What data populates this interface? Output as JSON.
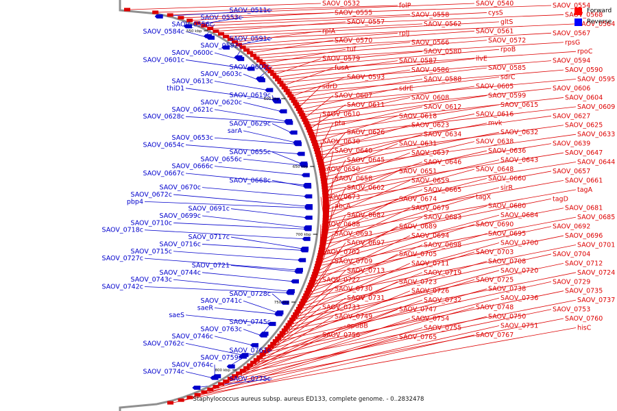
{
  "caption": "Staphylococcus aureus subsp. aureus ED133, complete genome. - 0..2832478",
  "legend": {
    "forward_label": "Forward",
    "reverse_label": "Reverse",
    "forward_color": "#ff0000",
    "reverse_color": "#0000ff"
  },
  "colors": {
    "forward": "#dd0000",
    "reverse": "#0000cc",
    "backbone": "#909090",
    "tick": "#000000"
  },
  "scale_ticks": [
    "550 kbp",
    "600 kbp",
    "650 kbp",
    "700 kbp",
    "750 kbp",
    "800 kbp"
  ],
  "forward_genes": [
    "SAOV_0532",
    "folP",
    "SAOV_0540",
    "SAOV_0554",
    "SAOV_0555",
    "SAOV_0558",
    "cysS",
    "SAOV_0568",
    "SAOV_0557",
    "SAOV_0562",
    "gltS",
    "SAOV_0564",
    "rplA",
    "rplJ",
    "SAOV_0561",
    "SAOV_0567",
    "SAOV_0570",
    "SAOV_0566",
    "SAOV_0572",
    "rpsG",
    "tuf",
    "SAOV_0580",
    "rpoB",
    "rpoC",
    "SAOV_0579",
    "SAOV_0587",
    "ilvE",
    "SAOV_0594",
    "fusA",
    "SAOV_0586",
    "SAOV_0585",
    "SAOV_0590",
    "SAOV_0593",
    "SAOV_0588",
    "sdrC",
    "SAOV_0595",
    "sdrD",
    "sdrE",
    "SAOV_0605",
    "SAOV_0606",
    "SAOV_0607",
    "SAOV_0608",
    "SAOV_0599",
    "SAOV_0604",
    "SAOV_0611",
    "SAOV_0612",
    "SAOV_0615",
    "SAOV_0609",
    "SAOV_0610",
    "SAOV_0618",
    "SAOV_0616",
    "SAOV_0627",
    "pta",
    "SAOV_0623",
    "mvk",
    "SAOV_0625",
    "SAOV_0626",
    "SAOV_0634",
    "SAOV_0632",
    "SAOV_0633",
    "SAOV_0630",
    "SAOV_0631",
    "SAOV_0638",
    "SAOV_0639",
    "SAOV_0640",
    "SAOV_0637",
    "SAOV_0636",
    "SAOV_0647",
    "SAOV_0645",
    "SAOV_0646",
    "SAOV_0643",
    "SAOV_0644",
    "SAOV_0650",
    "SAOV_0651",
    "SAOV_0648",
    "SAOV_0657",
    "SAOV_0658",
    "SAOV_0659",
    "SAOV_0660",
    "SAOV_0661",
    "SAOV_0662",
    "SAOV_0665",
    "sirR",
    "tagA",
    "SAOV_0673",
    "SAOV_0674",
    "tagX",
    "tagD",
    "abcA",
    "SAOV_0679",
    "SAOV_0680",
    "SAOV_0681",
    "SAOV_0682",
    "SAOV_0683",
    "SAOV_0684",
    "SAOV_0685",
    "SAOV_0688",
    "SAOV_0689",
    "SAOV_0690",
    "SAOV_0692",
    "SAOV_0693",
    "SAOV_0694",
    "SAOV_0695",
    "SAOV_0696",
    "SAOV_0697",
    "SAOV_0698",
    "SAOV_0700",
    "SAOV_0701",
    "SAOV_0702",
    "SAOV_0705",
    "SAOV_0703",
    "SAOV_0704",
    "SAOV_0709",
    "SAOV_0711",
    "SAOV_0708",
    "SAOV_0712",
    "SAOV_0713",
    "SAOV_0719",
    "SAOV_0720",
    "SAOV_0724",
    "SAOV_0722",
    "SAOV_0723",
    "SAOV_0725",
    "SAOV_0729",
    "SAOV_0730",
    "SAOV_0726",
    "SAOV_0738",
    "SAOV_0735",
    "SAOV_0731",
    "SAOV_0732",
    "SAOV_0736",
    "SAOV_0737",
    "SAOV_0733",
    "SAOV_0747",
    "SAOV_0748",
    "SAOV_0753",
    "SAOV_0749",
    "SAOV_0754",
    "SAOV_0750",
    "SAOV_0760",
    "opuBB",
    "SAOV_0755",
    "SAOV_0751",
    "hisC",
    "SAOV_0756",
    "SAOV_0765",
    "SAOV_0767"
  ],
  "reverse_genes": [
    "SAOV_0511c",
    "SAOV_0553c",
    "SAOV_0556c",
    "SAOV_0584c",
    "SAOV_0591c",
    "SAOV_0592c",
    "SAOV_0600c",
    "SAOV_0601c",
    "SAOV_0602c",
    "SAOV_0603c",
    "SAOV_0613c",
    "thiD1",
    "SAOV_0619c",
    "SAOV_0620c",
    "SAOV_0621c",
    "SAOV_0628c",
    "SAOV_0629c",
    "sarA",
    "SAOV_0653c",
    "SAOV_0654c",
    "SAOV_0655c",
    "SAOV_0656c",
    "SAOV_0666c",
    "SAOV_0667c",
    "SAOV_0668c",
    "SAOV_0670c",
    "SAOV_0672c",
    "pbp4",
    "SAOV_0691c",
    "SAOV_0699c",
    "SAOV_0710c",
    "SAOV_0718c",
    "SAOV_0717c",
    "SAOV_0716c",
    "SAOV_0715c",
    "SAOV_0727c",
    "SAOV_0721",
    "SAOV_0744c",
    "SAOV_0743c",
    "SAOV_0742c",
    "SAOV_0728c",
    "SAOV_0741c",
    "saeR",
    "saeS",
    "SAOV_0745c",
    "SAOV_0763c",
    "SAOV_0746c",
    "SAOV_0762c",
    "SAOV_0761c",
    "SAOV_0759c",
    "SAOV_0764c",
    "SAOV_0774c",
    "SAOV_0775c"
  ]
}
